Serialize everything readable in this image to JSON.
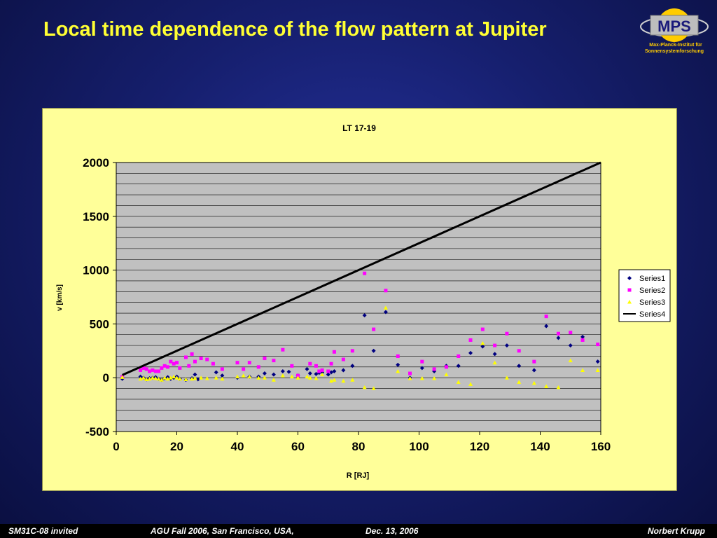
{
  "slide": {
    "title": "Local time dependence of the flow pattern at Jupiter",
    "logo_text": "MPS",
    "logo_subtitle_1": "Max-Planck-Institut für",
    "logo_subtitle_2": "Sonnensystemforschung"
  },
  "footer": {
    "left": "SM31C-08 invited",
    "center": "AGU Fall 2006, San Francisco, USA,",
    "date": "Dec. 13, 2006",
    "author": "Norbert Krupp"
  },
  "colors": {
    "background": "#161f6e",
    "title": "#ffff33",
    "chart_area": "#ffff99",
    "plot_area": "#c0c0c0",
    "series1": "#000080",
    "series2": "#ff00ff",
    "series3": "#ffff00",
    "series4": "#000000"
  },
  "chart_data": {
    "type": "scatter",
    "title": "LT 17-19",
    "xlabel": "R [RJ]",
    "ylabel": "v [km/s]",
    "xlim": [
      0,
      160
    ],
    "ylim": [
      -500,
      2000
    ],
    "x_ticks": [
      "0",
      "20",
      "40",
      "60",
      "80",
      "100",
      "120",
      "140",
      "160"
    ],
    "y_ticks": [
      "-500",
      "0",
      "500",
      "1000",
      "1500",
      "2000"
    ],
    "grid": "horizontal every 100",
    "legend_position": "right",
    "series": [
      {
        "name": "Series1",
        "marker": "diamond",
        "x": [
          2,
          8,
          9,
          10,
          11,
          12,
          13,
          14,
          15,
          16,
          17,
          18,
          19,
          20,
          21,
          23,
          25,
          26,
          27,
          33,
          35,
          40,
          44,
          47,
          49,
          52,
          55,
          57,
          60,
          63,
          64,
          66,
          67,
          68,
          70,
          71,
          72,
          75,
          78,
          82,
          85,
          89,
          93,
          97,
          101,
          105,
          109,
          113,
          117,
          121,
          125,
          129,
          133,
          138,
          142,
          146,
          150,
          154,
          159
        ],
        "y": [
          -10,
          10,
          0,
          -15,
          -5,
          0,
          5,
          -10,
          -20,
          -5,
          5,
          -10,
          0,
          10,
          -10,
          -20,
          -5,
          30,
          -15,
          50,
          20,
          0,
          10,
          10,
          40,
          30,
          60,
          55,
          20,
          80,
          40,
          35,
          45,
          50,
          30,
          50,
          60,
          70,
          110,
          580,
          250,
          610,
          120,
          0,
          90,
          60,
          110,
          110,
          230,
          290,
          220,
          300,
          110,
          70,
          480,
          370,
          300,
          380,
          150
        ]
      },
      {
        "name": "Series2",
        "marker": "square",
        "x": [
          2,
          8,
          9,
          10,
          11,
          12,
          13,
          14,
          15,
          16,
          17,
          18,
          19,
          20,
          21,
          23,
          24,
          25,
          26,
          28,
          30,
          32,
          35,
          40,
          42,
          44,
          47,
          49,
          52,
          55,
          58,
          60,
          64,
          66,
          67,
          68,
          70,
          71,
          72,
          75,
          78,
          82,
          85,
          89,
          93,
          97,
          101,
          105,
          109,
          113,
          117,
          121,
          125,
          129,
          133,
          138,
          142,
          146,
          150,
          154,
          159
        ],
        "y": [
          10,
          70,
          90,
          80,
          60,
          70,
          60,
          60,
          90,
          110,
          100,
          150,
          130,
          140,
          90,
          190,
          110,
          220,
          150,
          180,
          170,
          130,
          80,
          140,
          80,
          140,
          100,
          180,
          160,
          260,
          110,
          20,
          130,
          110,
          60,
          70,
          60,
          130,
          240,
          170,
          250,
          970,
          450,
          810,
          200,
          40,
          150,
          80,
          100,
          200,
          350,
          450,
          300,
          410,
          250,
          150,
          570,
          410,
          420,
          350,
          310
        ]
      },
      {
        "name": "Series3",
        "marker": "triangle",
        "x": [
          2,
          8,
          9,
          10,
          11,
          12,
          13,
          14,
          15,
          16,
          17,
          18,
          19,
          20,
          21,
          23,
          25,
          26,
          28,
          30,
          33,
          35,
          40,
          42,
          44,
          47,
          49,
          52,
          55,
          58,
          60,
          63,
          64,
          66,
          68,
          71,
          72,
          75,
          78,
          82,
          85,
          89,
          93,
          97,
          101,
          105,
          109,
          113,
          117,
          121,
          125,
          129,
          133,
          138,
          142,
          146,
          150,
          154,
          159
        ],
        "y": [
          5,
          -10,
          0,
          -15,
          -10,
          0,
          -5,
          -10,
          -20,
          0,
          -10,
          0,
          10,
          0,
          -10,
          -15,
          -10,
          -5,
          0,
          -5,
          0,
          -10,
          10,
          20,
          10,
          0,
          0,
          -20,
          20,
          10,
          0,
          10,
          0,
          -5,
          30,
          -30,
          -20,
          -30,
          -20,
          -90,
          -100,
          650,
          60,
          -5,
          -5,
          -5,
          30,
          -40,
          -60,
          320,
          140,
          0,
          -40,
          -50,
          -80,
          -90,
          160,
          70,
          70
        ]
      },
      {
        "name": "Series4",
        "marker": "line",
        "x": [
          2,
          160
        ],
        "y": [
          25,
          2000
        ]
      }
    ]
  }
}
